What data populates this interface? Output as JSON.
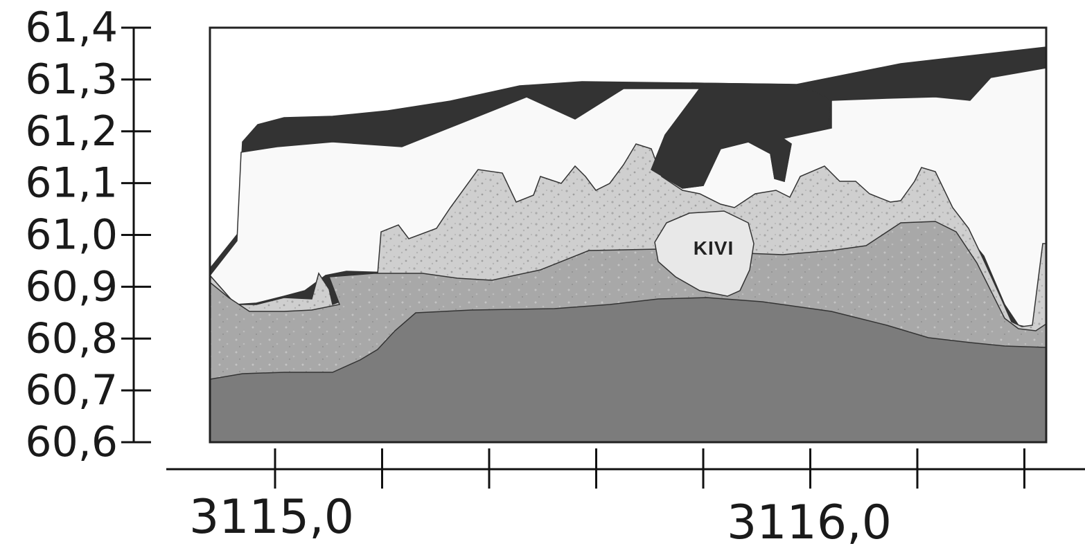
{
  "y_axis": {
    "ticks": [
      "61,4",
      "61,3",
      "61,2",
      "61,1",
      "61,0",
      "60,9",
      "60,8",
      "60,7",
      "60,6"
    ]
  },
  "x_axis": {
    "labels": [
      "3115,0",
      "3116,0"
    ]
  },
  "section": {
    "stone_label": "KIVI",
    "colors": {
      "topsoil": "#333333",
      "white_layer": "#f9f9f9",
      "light_layer": "#cfcfcf",
      "mid_layer": "#a6a6a6",
      "bottom_layer": "#7c7c7c",
      "stone": "#e8e8e8",
      "outline": "#333333"
    }
  }
}
